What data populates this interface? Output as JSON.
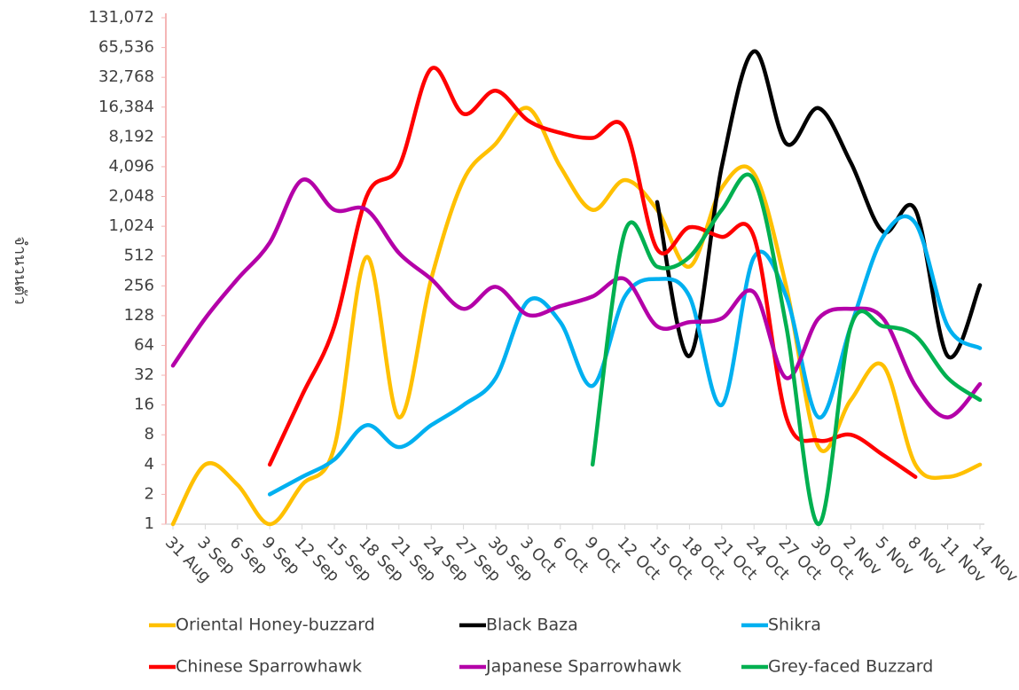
{
  "chart_data": {
    "type": "line",
    "log_scale": true,
    "grid": false,
    "y_label": "จำนวนตัว",
    "categories": [
      "31 Aug",
      "3 Sep",
      "6 Sep",
      "9 Sep",
      "12 Sep",
      "15 Sep",
      "18 Sep",
      "21 Sep",
      "24 Sep",
      "27 Sep",
      "30 Sep",
      "3 Oct",
      "6 Oct",
      "9 Oct",
      "12 Oct",
      "15 Oct",
      "18 Oct",
      "21 Oct",
      "24 Oct",
      "27 Oct",
      "30 Oct",
      "2 Nov",
      "5 Nov",
      "8 Nov",
      "11 Nov",
      "14 Nov"
    ],
    "series": [
      {
        "name": "Oriental Honey-buzzard",
        "color": "#ffc000",
        "values": [
          1,
          4,
          2.5,
          1,
          2.5,
          6,
          500,
          12,
          300,
          3000,
          7000,
          16000,
          4096,
          1500,
          3000,
          1500,
          400,
          2500,
          3500,
          250,
          6,
          18,
          40,
          4,
          3,
          4
        ]
      },
      {
        "name": "Black Baza",
        "color": "#000000",
        "values": [
          null,
          null,
          null,
          null,
          null,
          null,
          null,
          null,
          null,
          null,
          null,
          null,
          null,
          null,
          null,
          1800,
          50,
          4096,
          60000,
          7000,
          16000,
          4500,
          900,
          1500,
          50,
          260
        ]
      },
      {
        "name": "Shikra",
        "color": "#00b0f0",
        "values": [
          null,
          null,
          null,
          2,
          3,
          4.5,
          10,
          6,
          10,
          16,
          30,
          180,
          110,
          25,
          200,
          300,
          200,
          16,
          500,
          200,
          12,
          100,
          800,
          1100,
          100,
          60
        ]
      },
      {
        "name": "Chinese Sparrowhawk",
        "color": "#ff0000",
        "values": [
          null,
          null,
          null,
          4,
          20,
          100,
          2048,
          4096,
          40000,
          14000,
          24000,
          12000,
          9000,
          8000,
          10000,
          600,
          1000,
          800,
          800,
          12,
          7,
          8,
          5,
          3,
          null,
          null
        ]
      },
      {
        "name": "Japanese Sparrowhawk",
        "color": "#b400a8",
        "values": [
          40,
          120,
          300,
          700,
          3000,
          1500,
          1500,
          550,
          300,
          150,
          250,
          130,
          160,
          200,
          300,
          100,
          110,
          120,
          220,
          30,
          120,
          150,
          120,
          25,
          12,
          26
        ]
      },
      {
        "name": "Grey-faced Buzzard",
        "color": "#00b050",
        "values": [
          null,
          null,
          null,
          null,
          null,
          null,
          null,
          null,
          null,
          null,
          null,
          null,
          null,
          4,
          900,
          400,
          500,
          1500,
          3000,
          100,
          1,
          100,
          100,
          80,
          30,
          18
        ]
      }
    ],
    "ylim": [
      1,
      131072
    ],
    "yticks": [
      1,
      2,
      4,
      8,
      16,
      32,
      64,
      128,
      256,
      512,
      {
        "value": 1024,
        "label": "1,024"
      },
      {
        "value": 2048,
        "label": "2,048"
      },
      {
        "value": 4096,
        "label": "4,096"
      },
      {
        "value": 8192,
        "label": "8,192"
      },
      {
        "value": 16384,
        "label": "16,384"
      },
      {
        "value": 32768,
        "label": "32,768"
      },
      {
        "value": 65536,
        "label": "65,536"
      },
      {
        "value": 131072,
        "label": "131,072"
      }
    ]
  }
}
